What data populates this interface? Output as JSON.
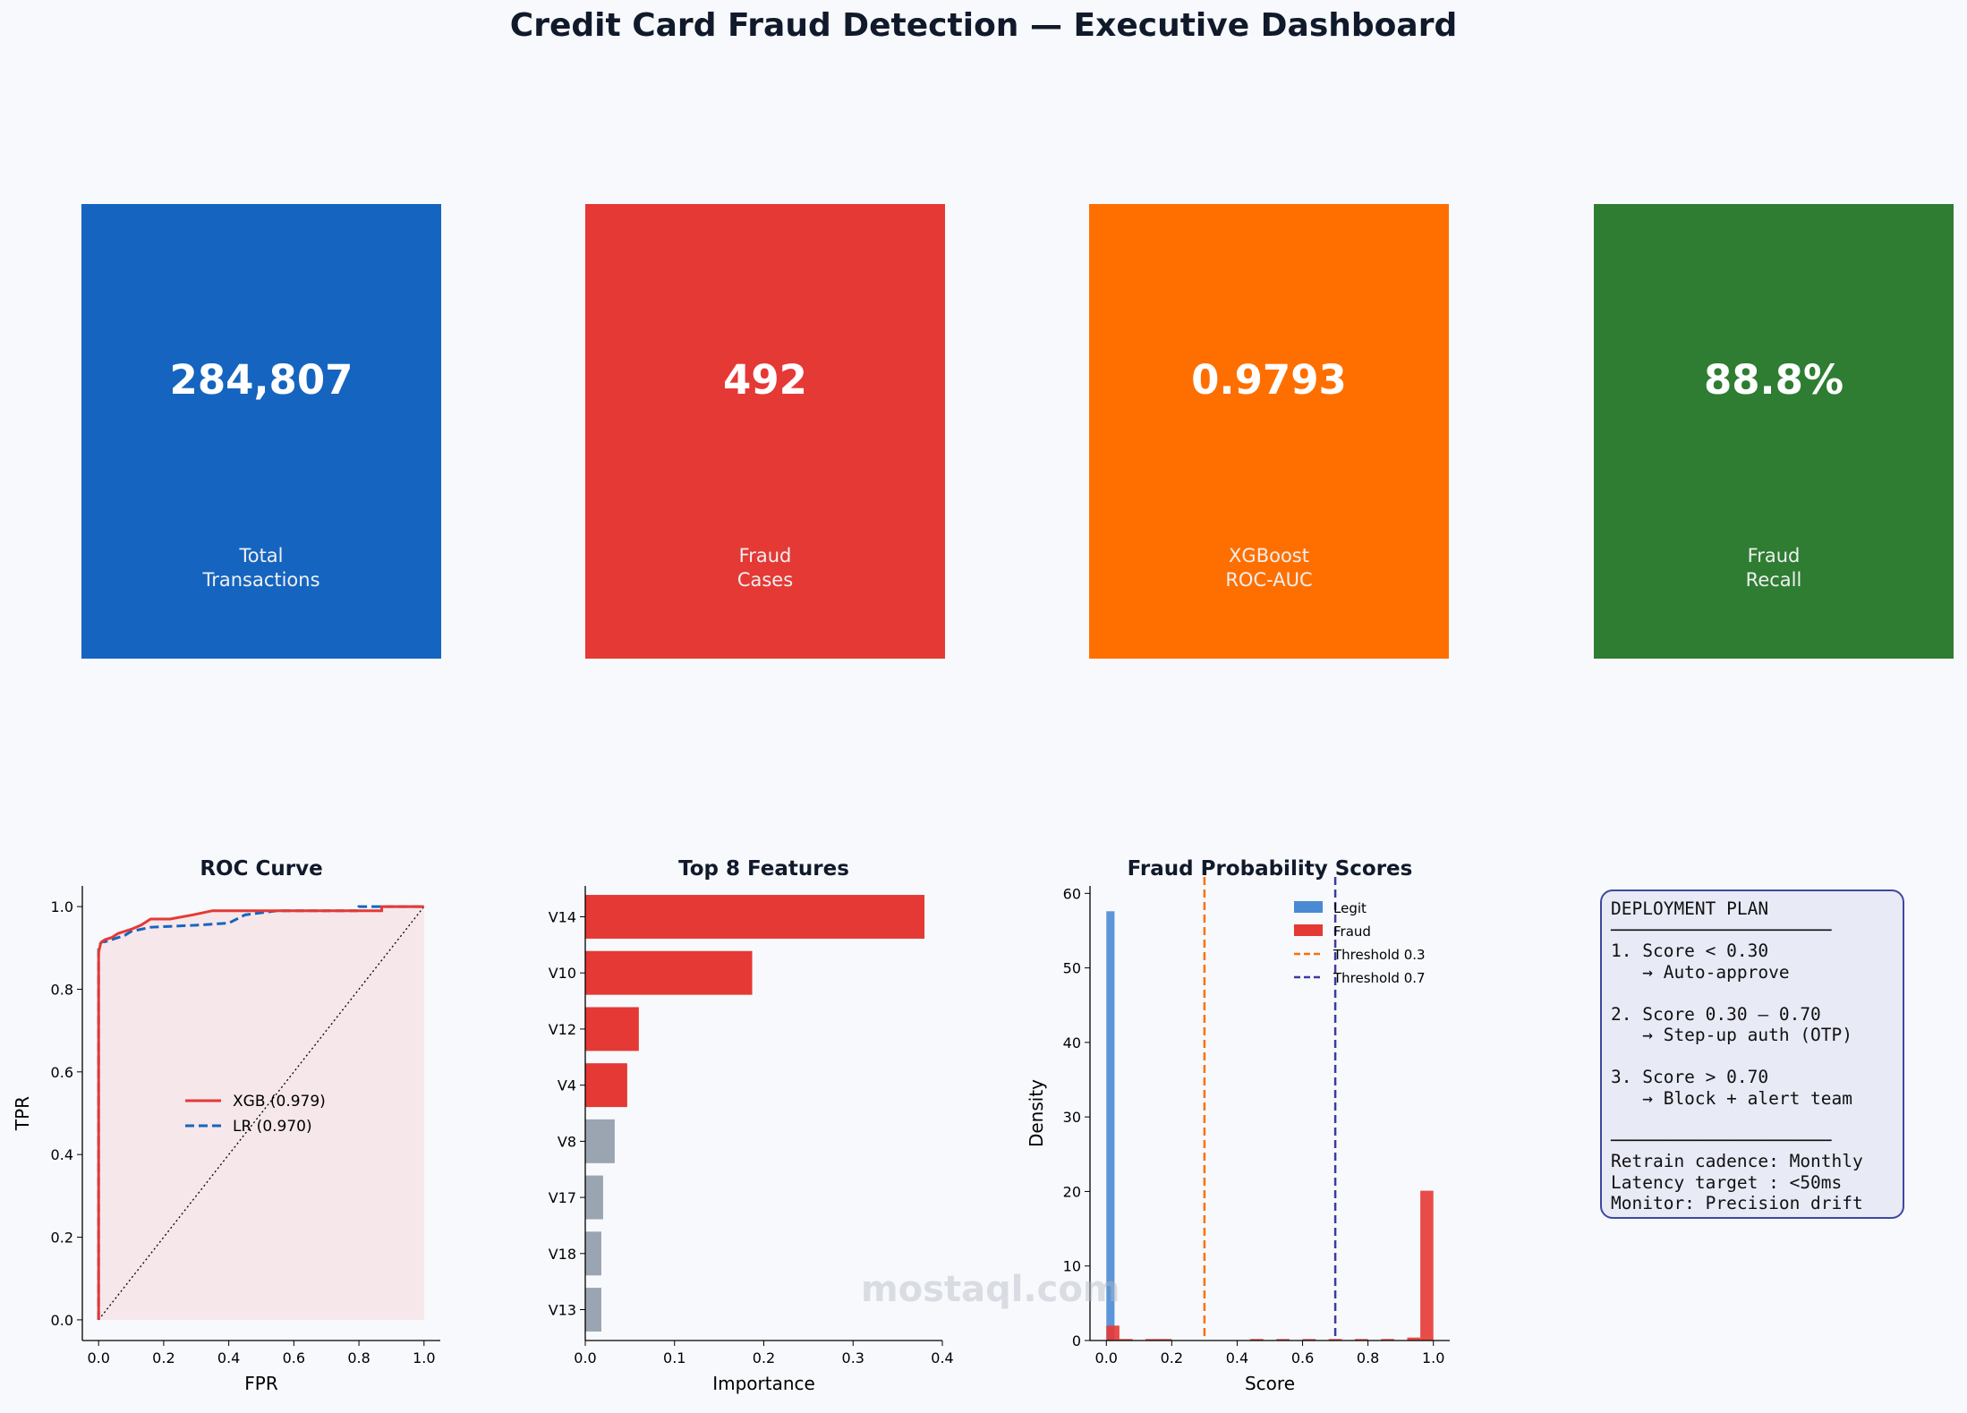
{
  "title": "Credit Card Fraud Detection — Executive Dashboard",
  "kpis": [
    {
      "value": "284,807",
      "label": "Total\nTransactions",
      "color": "#1565c0"
    },
    {
      "value": "492",
      "label": "Fraud\nCases",
      "color": "#e53935"
    },
    {
      "value": "0.9793",
      "label": "XGBoost\nROC-AUC",
      "color": "#ff6f00"
    },
    {
      "value": "88.8%",
      "label": "Fraud\nRecall",
      "color": "#2e7d32"
    }
  ],
  "watermark": "mostaql.com",
  "chart_data": [
    {
      "type": "line",
      "title": "ROC Curve",
      "xlabel": "FPR",
      "ylabel": "TPR",
      "xlim": [
        -0.05,
        1.05
      ],
      "ylim": [
        -0.05,
        1.05
      ],
      "xticks": [
        "0.0",
        "0.2",
        "0.4",
        "0.6",
        "0.8",
        "1.0"
      ],
      "yticks": [
        "0.0",
        "0.2",
        "0.4",
        "0.6",
        "0.8",
        "1.0"
      ],
      "legend_position": "center",
      "series": [
        {
          "name": "XGB (0.979)",
          "color": "#e53935",
          "style": "solid",
          "x": [
            0,
            0,
            0.003,
            0.006,
            0.01,
            0.02,
            0.04,
            0.06,
            0.1,
            0.13,
            0.16,
            0.22,
            0.29,
            0.35,
            0.6,
            0.87,
            0.87,
            1.0
          ],
          "y": [
            0,
            0.89,
            0.9,
            0.91,
            0.915,
            0.92,
            0.925,
            0.935,
            0.945,
            0.955,
            0.97,
            0.97,
            0.98,
            0.99,
            0.99,
            0.99,
            1.0,
            1.0
          ]
        },
        {
          "name": "LR (0.970)",
          "color": "#1565c0",
          "style": "dashed",
          "x": [
            0,
            0,
            0.005,
            0.01,
            0.02,
            0.04,
            0.08,
            0.1,
            0.16,
            0.3,
            0.4,
            0.45,
            0.55,
            0.8,
            0.8,
            1.0
          ],
          "y": [
            0,
            0.9,
            0.91,
            0.915,
            0.915,
            0.92,
            0.93,
            0.94,
            0.95,
            0.955,
            0.96,
            0.98,
            0.99,
            0.99,
            1.0,
            1.0
          ]
        },
        {
          "name": "",
          "color": "#000000",
          "style": "dotted",
          "x": [
            0,
            1
          ],
          "y": [
            0,
            1
          ]
        }
      ]
    },
    {
      "type": "bar",
      "orientation": "horizontal",
      "title": "Top 8 Features",
      "xlabel": "Importance",
      "xlim": [
        0,
        0.4
      ],
      "xticks": [
        "0.0",
        "0.1",
        "0.2",
        "0.3",
        "0.4"
      ],
      "categories": [
        "V14",
        "V10",
        "V12",
        "V4",
        "V8",
        "V17",
        "V18",
        "V13"
      ],
      "values": [
        0.38,
        0.187,
        0.06,
        0.047,
        0.033,
        0.02,
        0.018,
        0.018
      ],
      "colors": [
        "#e53935",
        "#e53935",
        "#e53935",
        "#e53935",
        "#9aa5b1",
        "#9aa5b1",
        "#9aa5b1",
        "#9aa5b1"
      ]
    },
    {
      "type": "bar",
      "subtype": "histogram",
      "title": "Fraud Probability Scores",
      "xlabel": "Score",
      "ylabel": "Density",
      "xlim": [
        -0.05,
        1.05
      ],
      "ylim": [
        0,
        61
      ],
      "xticks": [
        "0.0",
        "0.2",
        "0.4",
        "0.6",
        "0.8",
        "1.0"
      ],
      "yticks": [
        "0",
        "10",
        "20",
        "30",
        "40",
        "50",
        "60"
      ],
      "legend_position": "top-right",
      "series": [
        {
          "name": "Legit",
          "color": "#4a8ad4",
          "bins": [
            [
              0.0,
              0.025,
              57.6
            ]
          ]
        },
        {
          "name": "Fraud",
          "color": "#e53935",
          "bins": [
            [
              0.0,
              0.04,
              2.0
            ],
            [
              0.04,
              0.08,
              0.2
            ],
            [
              0.12,
              0.16,
              0.2
            ],
            [
              0.16,
              0.2,
              0.2
            ],
            [
              0.44,
              0.48,
              0.2
            ],
            [
              0.52,
              0.56,
              0.2
            ],
            [
              0.6,
              0.64,
              0.2
            ],
            [
              0.68,
              0.72,
              0.2
            ],
            [
              0.76,
              0.8,
              0.2
            ],
            [
              0.84,
              0.88,
              0.2
            ],
            [
              0.92,
              0.96,
              0.4
            ],
            [
              0.96,
              1.0,
              20.1
            ]
          ]
        }
      ],
      "thresholds": [
        {
          "name": "Threshold 0.3",
          "value": 0.3,
          "color": "#ff6f00"
        },
        {
          "name": "Threshold 0.7",
          "value": 0.7,
          "color": "#3d3aa0"
        }
      ]
    }
  ],
  "deployment_plan": {
    "lines": [
      "DEPLOYMENT PLAN",
      "─────────────────────",
      "1. Score < 0.30",
      "   → Auto-approve",
      "",
      "2. Score 0.30 – 0.70",
      "   → Step-up auth (OTP)",
      "",
      "3. Score > 0.70",
      "   → Block + alert team",
      "",
      "─────────────────────",
      "Retrain cadence: Monthly",
      "Latency target : <50ms",
      "Monitor: Precision drift"
    ]
  }
}
